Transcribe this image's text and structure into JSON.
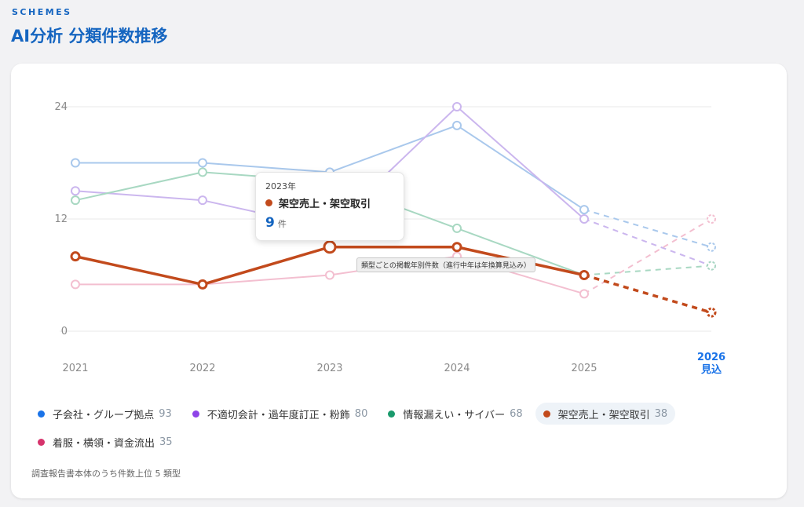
{
  "header": {
    "eyebrow": "SCHEMES",
    "title": "AI分析 分類件数推移"
  },
  "tooltip": {
    "year": "2023年",
    "series": "架空売上・架空取引",
    "value": "9",
    "unit": "件",
    "color": "#c24a1c"
  },
  "hint_text": "類型ごとの掲載年別件数（進行中年は年換算見込み）",
  "footnote": "調査報告書本体のうち件数上位 5 類型",
  "legend": [
    {
      "label": "子会社・グループ拠点",
      "count": "93",
      "color": "#1a73e8",
      "active": false
    },
    {
      "label": "不適切会計・過年度訂正・粉飾",
      "count": "80",
      "color": "#8e44e8",
      "active": false
    },
    {
      "label": "情報漏えい・サイバー",
      "count": "68",
      "color": "#1a9a6c",
      "active": false
    },
    {
      "label": "架空売上・架空取引",
      "count": "38",
      "color": "#c24a1c",
      "active": true
    },
    {
      "label": "着服・横領・資金流出",
      "count": "35",
      "color": "#d6336c",
      "active": false
    }
  ],
  "chart_data": {
    "type": "line",
    "categories": [
      "2021",
      "2022",
      "2023",
      "2024",
      "2025",
      "2026\n見込"
    ],
    "projected_index": 5,
    "ylim": [
      0,
      24
    ],
    "yticks": [
      0,
      12,
      24
    ],
    "grid": true,
    "highlight_series": "架空売上・架空取引",
    "highlight_point": {
      "series": "架空売上・架空取引",
      "category": "2023"
    },
    "series": [
      {
        "name": "子会社・グループ拠点",
        "color": "#a9c8ec",
        "values": [
          18,
          18,
          17,
          22,
          13,
          9
        ]
      },
      {
        "name": "不適切会計・過年度訂正・粉飾",
        "color": "#cbb6ee",
        "values": [
          15,
          14,
          11,
          24,
          12,
          7
        ]
      },
      {
        "name": "情報漏えい・サイバー",
        "color": "#a8d8c2",
        "values": [
          14,
          17,
          16,
          11,
          6,
          7
        ]
      },
      {
        "name": "着服・横領・資金流出",
        "color": "#f3bfd0",
        "values": [
          5,
          5,
          6,
          8,
          4,
          12
        ]
      },
      {
        "name": "架空売上・架空取引",
        "color": "#c24a1c",
        "values": [
          8,
          5,
          9,
          9,
          6,
          2
        ]
      }
    ]
  }
}
